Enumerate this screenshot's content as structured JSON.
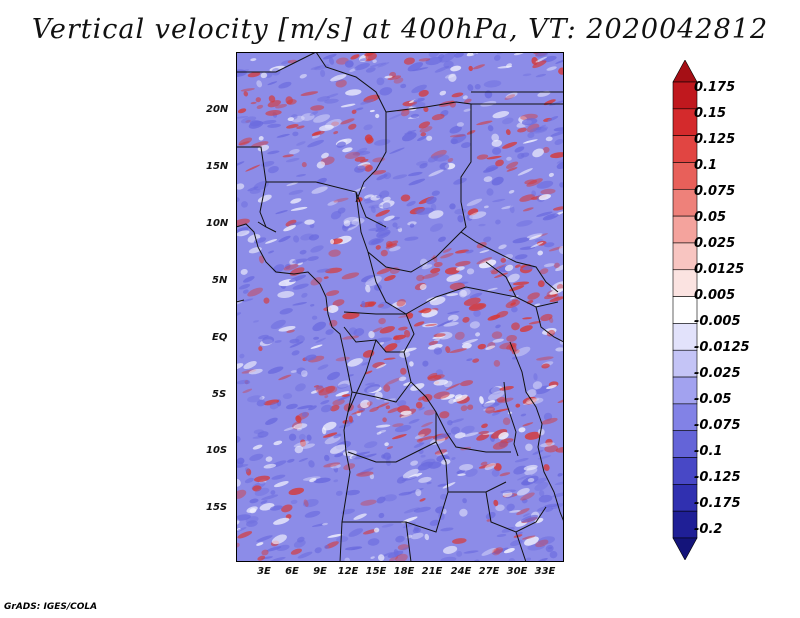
{
  "title": "Vertical velocity [m/s] at 400hPa, VT: 2020042812",
  "footer": "GrADS: IGES/COLA",
  "map": {
    "lat_labels": [
      "20N",
      "15N",
      "10N",
      "5N",
      "EQ",
      "5S",
      "10S",
      "15S"
    ],
    "lon_labels": [
      "3E",
      "6E",
      "9E",
      "12E",
      "15E",
      "18E",
      "21E",
      "24E",
      "27E",
      "30E",
      "33E"
    ]
  },
  "colorbar": {
    "levels": [
      "0.175",
      "0.15",
      "0.125",
      "0.1",
      "0.075",
      "0.05",
      "0.025",
      "0.0125",
      "0.005",
      "-0.005",
      "-0.0125",
      "-0.025",
      "-0.05",
      "-0.075",
      "-0.1",
      "-0.125",
      "-0.175",
      "-0.2"
    ],
    "colors": [
      "#a50f15",
      "#c0181e",
      "#d42a2c",
      "#e14542",
      "#e8605a",
      "#ee817a",
      "#f4a39d",
      "#f8c5c1",
      "#fbe3e1",
      "#ffffff",
      "#e2e2fb",
      "#c4c4f6",
      "#a2a2ef",
      "#8282e6",
      "#6464d8",
      "#4848c6",
      "#3030b0",
      "#1f1f96",
      "#14147a"
    ]
  },
  "fill_colors": {
    "red": "#d63a3a",
    "blue": "#6b6bde",
    "base": "#8c8ce8",
    "white": "#f4f4fe"
  }
}
